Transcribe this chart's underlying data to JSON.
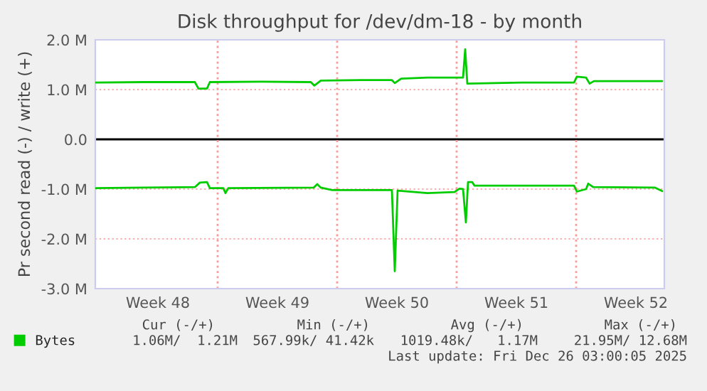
{
  "chart_data": {
    "type": "line",
    "title": "Disk throughput for /dev/dm-18 - by month",
    "ylabel": "Pr second read (-) / write (+)",
    "series": [
      {
        "name": "Bytes",
        "color": "#00cc00",
        "x": [
          "2025-11-23T20:00",
          "2025-11-26T15:00",
          "2025-11-29T16:00",
          "2025-11-29T21:00",
          "2025-11-30T09:00",
          "2025-11-30T13:00",
          "2025-12-03T13:00",
          "2025-12-06T11:00",
          "2025-12-06T16:00",
          "2025-12-07T01:00",
          "2025-12-09T09:00",
          "2025-12-11T05:00",
          "2025-12-11T09:00",
          "2025-12-11T18:00",
          "2025-12-13T07:00",
          "2025-12-15T09:00",
          "2025-12-15T12:00",
          "2025-12-15T15:00",
          "2025-12-18T20:00",
          "2025-12-21T21:00",
          "2025-12-22T01:00",
          "2025-12-22T14:00",
          "2025-12-22T19:00",
          "2025-12-23T01:00",
          "2025-12-27T01:00"
        ],
        "values": [
          1.14,
          1.15,
          1.15,
          1.02,
          1.02,
          1.15,
          1.16,
          1.15,
          1.08,
          1.18,
          1.19,
          1.19,
          1.13,
          1.22,
          1.24,
          1.24,
          1.81,
          1.12,
          1.14,
          1.14,
          1.26,
          1.24,
          1.12,
          1.17,
          1.17
        ]
      },
      {
        "color": "#00cc00",
        "x": [
          "2025-11-23T20:00",
          "2025-11-26T15:00",
          "2025-11-29T16:00",
          "2025-11-29T23:00",
          "2025-11-30T09:00",
          "2025-11-30T13:00",
          "2025-12-01T08:00",
          "2025-12-01T11:00",
          "2025-12-01T15:00",
          "2025-12-06T15:00",
          "2025-12-06T20:00",
          "2025-12-07T01:00",
          "2025-12-07T17:00",
          "2025-12-11T05:00",
          "2025-12-11T09:00",
          "2025-12-11T13:00",
          "2025-12-13T07:00",
          "2025-12-14T21:00",
          "2025-12-15T04:00",
          "2025-12-15T09:00",
          "2025-12-15T13:00",
          "2025-12-15T16:00",
          "2025-12-15T22:00",
          "2025-12-16T01:00",
          "2025-12-21T21:00",
          "2025-12-22T01:00",
          "2025-12-22T14:00",
          "2025-12-22T17:00",
          "2025-12-23T00:00",
          "2025-12-26T15:00",
          "2025-12-27T01:00"
        ],
        "values": [
          -0.98,
          -0.97,
          -0.96,
          -0.87,
          -0.86,
          -0.98,
          -0.98,
          -1.08,
          -0.98,
          -0.97,
          -0.9,
          -0.97,
          -1.02,
          -1.02,
          -2.65,
          -1.03,
          -1.08,
          -1.06,
          -0.99,
          -1.0,
          -1.67,
          -0.86,
          -0.86,
          -0.93,
          -0.93,
          -1.05,
          -1.0,
          -0.89,
          -0.96,
          -0.97,
          -1.04
        ]
      }
    ],
    "xlim": [
      "2025-11-23T20:00",
      "2025-12-27T04:00"
    ],
    "xticks": [
      {
        "value": "2025-11-27T12:00",
        "label": "Week 48"
      },
      {
        "value": "2025-12-04T12:00",
        "label": "Week 49"
      },
      {
        "value": "2025-12-11T12:00",
        "label": "Week 50"
      },
      {
        "value": "2025-12-18T12:00",
        "label": "Week 51"
      },
      {
        "value": "2025-12-25T12:00",
        "label": "Week 52"
      }
    ],
    "ylim": [
      -3,
      2
    ],
    "yticks": [
      {
        "value": -3,
        "label": "-3.0 M"
      },
      {
        "value": -2,
        "label": "-2.0 M"
      },
      {
        "value": -1,
        "label": "-1.0 M"
      },
      {
        "value": 0,
        "label": "0.0"
      },
      {
        "value": 1,
        "label": "1.0 M"
      },
      {
        "value": 2,
        "label": "2.0 M"
      }
    ],
    "ref_lines": [
      {
        "axis": "y",
        "value": 0,
        "color": "#000000"
      },
      {
        "axis": "x",
        "value": "2025-12-01",
        "color": "#ff9999",
        "line_style": "dotted"
      },
      {
        "axis": "x",
        "value": "2025-12-08",
        "color": "#ff9999",
        "line_style": "dotted"
      },
      {
        "axis": "x",
        "value": "2025-12-15",
        "color": "#ff9999",
        "line_style": "dotted"
      },
      {
        "axis": "x",
        "value": "2025-12-22",
        "color": "#ff9999",
        "line_style": "dotted"
      }
    ],
    "grid": "y",
    "legend": "bottom left",
    "marker": "none",
    "line_style": "solid",
    "annotations": [
      "Cur (-/+)",
      "Min (-/+)",
      "Avg (-/+)",
      "Max (-/+)",
      "1.06M/  1.21M",
      "567.99k/ 41.42k",
      "1019.48k/   1.17M",
      "21.95M/ 12.68M",
      "Last update: Fri Dec 26 03:00:05 2025"
    ]
  }
}
